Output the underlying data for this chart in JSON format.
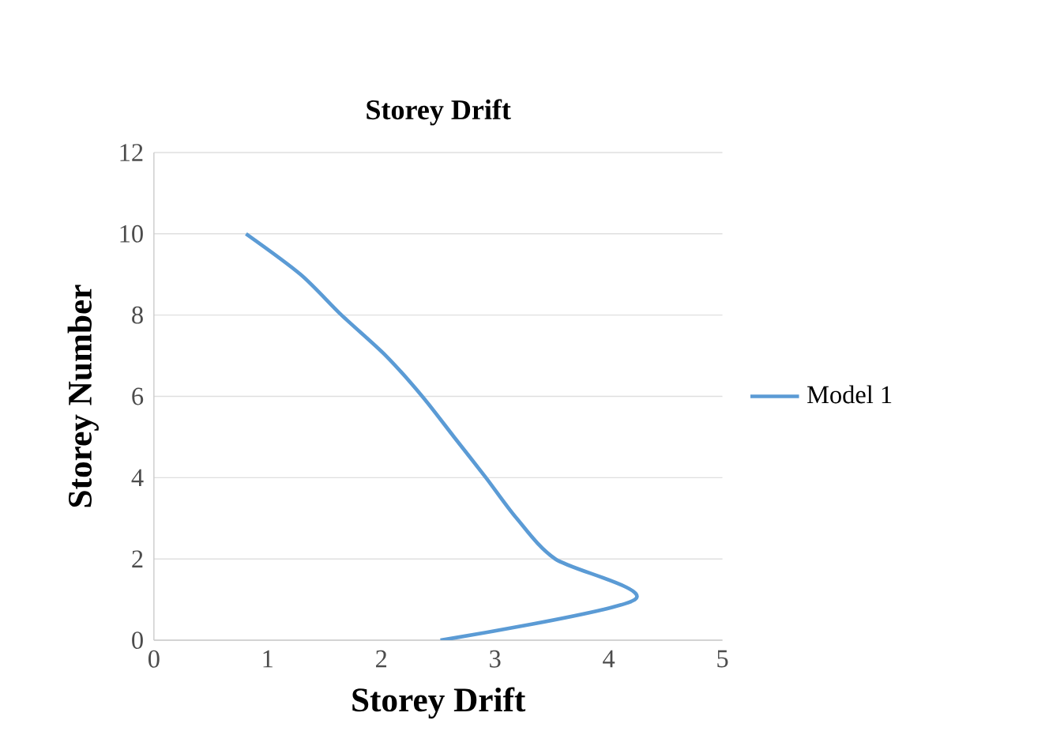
{
  "chart_data": {
    "type": "line",
    "title": "Storey Drift",
    "xlabel": "Storey Drift",
    "ylabel": "Storey Number",
    "series": [
      {
        "name": "Model 1",
        "color": "#5b9bd5",
        "x": [
          2.52,
          4.23,
          3.53,
          3.19,
          2.92,
          2.64,
          2.36,
          2.04,
          1.65,
          1.29,
          0.81
        ],
        "values": [
          0,
          1,
          2,
          3,
          4,
          5,
          6,
          7,
          8,
          9,
          10
        ]
      }
    ],
    "xlim": [
      0,
      5
    ],
    "xticks": [
      0,
      1,
      2,
      3,
      4,
      5
    ],
    "ylim": [
      0,
      12
    ],
    "yticks": [
      0,
      2,
      4,
      6,
      8,
      10,
      12
    ],
    "grid": "y",
    "legend": "right",
    "marker": "none",
    "line_style": "solid"
  }
}
